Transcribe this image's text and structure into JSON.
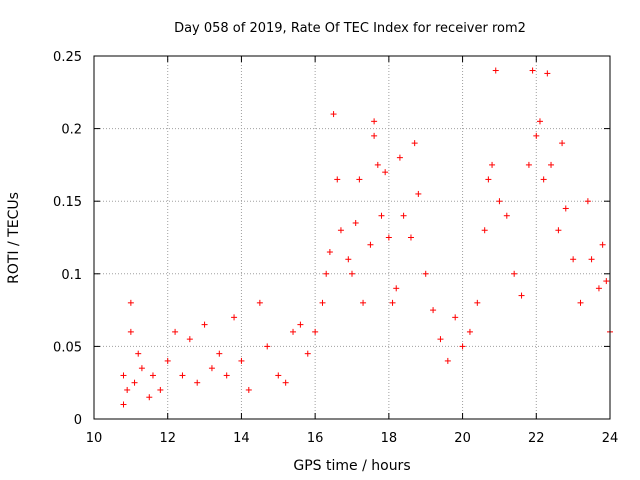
{
  "chart_data": {
    "type": "scatter",
    "title": "Day 058 of 2019, Rate Of TEC Index for receiver rom2",
    "xlabel": "GPS time / hours",
    "ylabel": "ROTI / TECUs",
    "xlim": [
      10,
      24
    ],
    "ylim": [
      0,
      0.25
    ],
    "x_ticks": [
      "10",
      "12",
      "14",
      "16",
      "18",
      "20",
      "22",
      "24"
    ],
    "y_ticks": [
      "0",
      "0.05",
      "0.1",
      "0.15",
      "0.2",
      "0.25"
    ],
    "grid": true,
    "marker": "+",
    "color": "#ff0000",
    "series": [
      {
        "points": [
          [
            10.8,
            0.01
          ],
          [
            10.8,
            0.03
          ],
          [
            10.9,
            0.02
          ],
          [
            11.0,
            0.08
          ],
          [
            11.0,
            0.06
          ],
          [
            11.1,
            0.025
          ],
          [
            11.2,
            0.045
          ],
          [
            11.3,
            0.035
          ],
          [
            11.5,
            0.015
          ],
          [
            11.6,
            0.03
          ],
          [
            11.8,
            0.02
          ],
          [
            12.0,
            0.04
          ],
          [
            12.2,
            0.06
          ],
          [
            12.4,
            0.03
          ],
          [
            12.6,
            0.055
          ],
          [
            12.8,
            0.025
          ],
          [
            13.0,
            0.065
          ],
          [
            13.2,
            0.035
          ],
          [
            13.4,
            0.045
          ],
          [
            13.6,
            0.03
          ],
          [
            13.8,
            0.07
          ],
          [
            14.0,
            0.04
          ],
          [
            14.2,
            0.02
          ],
          [
            14.5,
            0.08
          ],
          [
            14.7,
            0.05
          ],
          [
            15.0,
            0.03
          ],
          [
            15.2,
            0.025
          ],
          [
            15.4,
            0.06
          ],
          [
            15.6,
            0.065
          ],
          [
            15.8,
            0.045
          ],
          [
            16.0,
            0.06
          ],
          [
            16.2,
            0.08
          ],
          [
            16.3,
            0.1
          ],
          [
            16.4,
            0.115
          ],
          [
            16.5,
            0.21
          ],
          [
            16.6,
            0.165
          ],
          [
            16.7,
            0.13
          ],
          [
            16.9,
            0.11
          ],
          [
            17.0,
            0.1
          ],
          [
            17.1,
            0.135
          ],
          [
            17.2,
            0.165
          ],
          [
            17.3,
            0.08
          ],
          [
            17.5,
            0.12
          ],
          [
            17.6,
            0.205
          ],
          [
            17.6,
            0.195
          ],
          [
            17.7,
            0.175
          ],
          [
            17.8,
            0.14
          ],
          [
            17.9,
            0.17
          ],
          [
            18.0,
            0.125
          ],
          [
            18.1,
            0.08
          ],
          [
            18.2,
            0.09
          ],
          [
            18.3,
            0.18
          ],
          [
            18.4,
            0.14
          ],
          [
            18.6,
            0.125
          ],
          [
            18.7,
            0.19
          ],
          [
            18.8,
            0.155
          ],
          [
            19.0,
            0.1
          ],
          [
            19.2,
            0.075
          ],
          [
            19.4,
            0.055
          ],
          [
            19.6,
            0.04
          ],
          [
            19.8,
            0.07
          ],
          [
            20.0,
            0.05
          ],
          [
            20.2,
            0.06
          ],
          [
            20.4,
            0.08
          ],
          [
            20.6,
            0.13
          ],
          [
            20.7,
            0.165
          ],
          [
            20.8,
            0.175
          ],
          [
            20.9,
            0.24
          ],
          [
            21.0,
            0.15
          ],
          [
            21.2,
            0.14
          ],
          [
            21.4,
            0.1
          ],
          [
            21.6,
            0.085
          ],
          [
            21.8,
            0.175
          ],
          [
            21.9,
            0.24
          ],
          [
            22.0,
            0.195
          ],
          [
            22.1,
            0.205
          ],
          [
            22.2,
            0.165
          ],
          [
            22.3,
            0.238
          ],
          [
            22.4,
            0.175
          ],
          [
            22.6,
            0.13
          ],
          [
            22.7,
            0.19
          ],
          [
            22.8,
            0.145
          ],
          [
            23.0,
            0.11
          ],
          [
            23.2,
            0.08
          ],
          [
            23.4,
            0.15
          ],
          [
            23.5,
            0.11
          ],
          [
            23.7,
            0.09
          ],
          [
            23.8,
            0.12
          ],
          [
            23.9,
            0.095
          ],
          [
            24.0,
            0.06
          ]
        ]
      }
    ]
  }
}
